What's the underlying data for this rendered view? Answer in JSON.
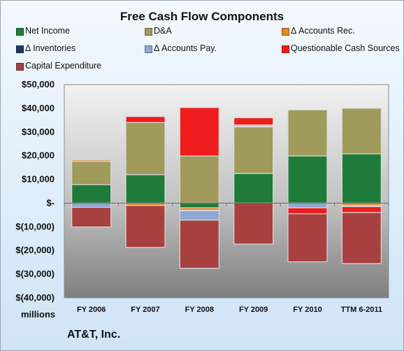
{
  "company": "AT&T, Inc.",
  "units_label": "millions",
  "chart_data": {
    "type": "bar",
    "stacked": true,
    "title": "Free Cash Flow Components",
    "xlabel": "",
    "ylabel": "",
    "units": "millions",
    "ylim": [
      -40000,
      50000
    ],
    "yticks": [
      50000,
      40000,
      30000,
      20000,
      10000,
      0,
      -10000,
      -20000,
      -30000,
      -40000
    ],
    "ytick_labels": [
      "$50,000",
      "$40,000",
      "$30,000",
      "$20,000",
      "$10,000",
      "$-",
      "$(10,000)",
      "$(20,000)",
      "$(30,000)",
      "$(40,000)"
    ],
    "categories": [
      "FY 2006",
      "FY 2007",
      "FY 2008",
      "FY 2009",
      "FY 2010",
      "TTM 6-2011"
    ],
    "legend_position": "top",
    "grid": false,
    "series": [
      {
        "name": "Net Income",
        "color": "#1e7b3a",
        "values": [
          7800,
          12000,
          -2000,
          12500,
          19900,
          20800
        ]
      },
      {
        "name": "D&A",
        "color": "#a09a5b",
        "values": [
          9800,
          22000,
          19900,
          19700,
          19400,
          19200
        ]
      },
      {
        "name": "Δ Accounts Rec.",
        "color": "#e8862a",
        "values": [
          600,
          -1000,
          -1000,
          0,
          0,
          -1000
        ]
      },
      {
        "name": "Δ Inventories",
        "color": "#1f3864",
        "values": [
          0,
          0,
          -200,
          200,
          0,
          0
        ]
      },
      {
        "name": "Δ Accounts Pay.",
        "color": "#8fa7d4",
        "values": [
          -1800,
          0,
          -4000,
          600,
          -2000,
          -500
        ]
      },
      {
        "name": "Questionable Cash Sources",
        "color": "#ee1c1c",
        "values": [
          0,
          2500,
          20400,
          3000,
          -2500,
          -2500
        ]
      },
      {
        "name": "Capital Expenditure",
        "color": "#a84040",
        "values": [
          -8300,
          -17700,
          -20300,
          -17300,
          -20300,
          -21500
        ]
      }
    ]
  }
}
